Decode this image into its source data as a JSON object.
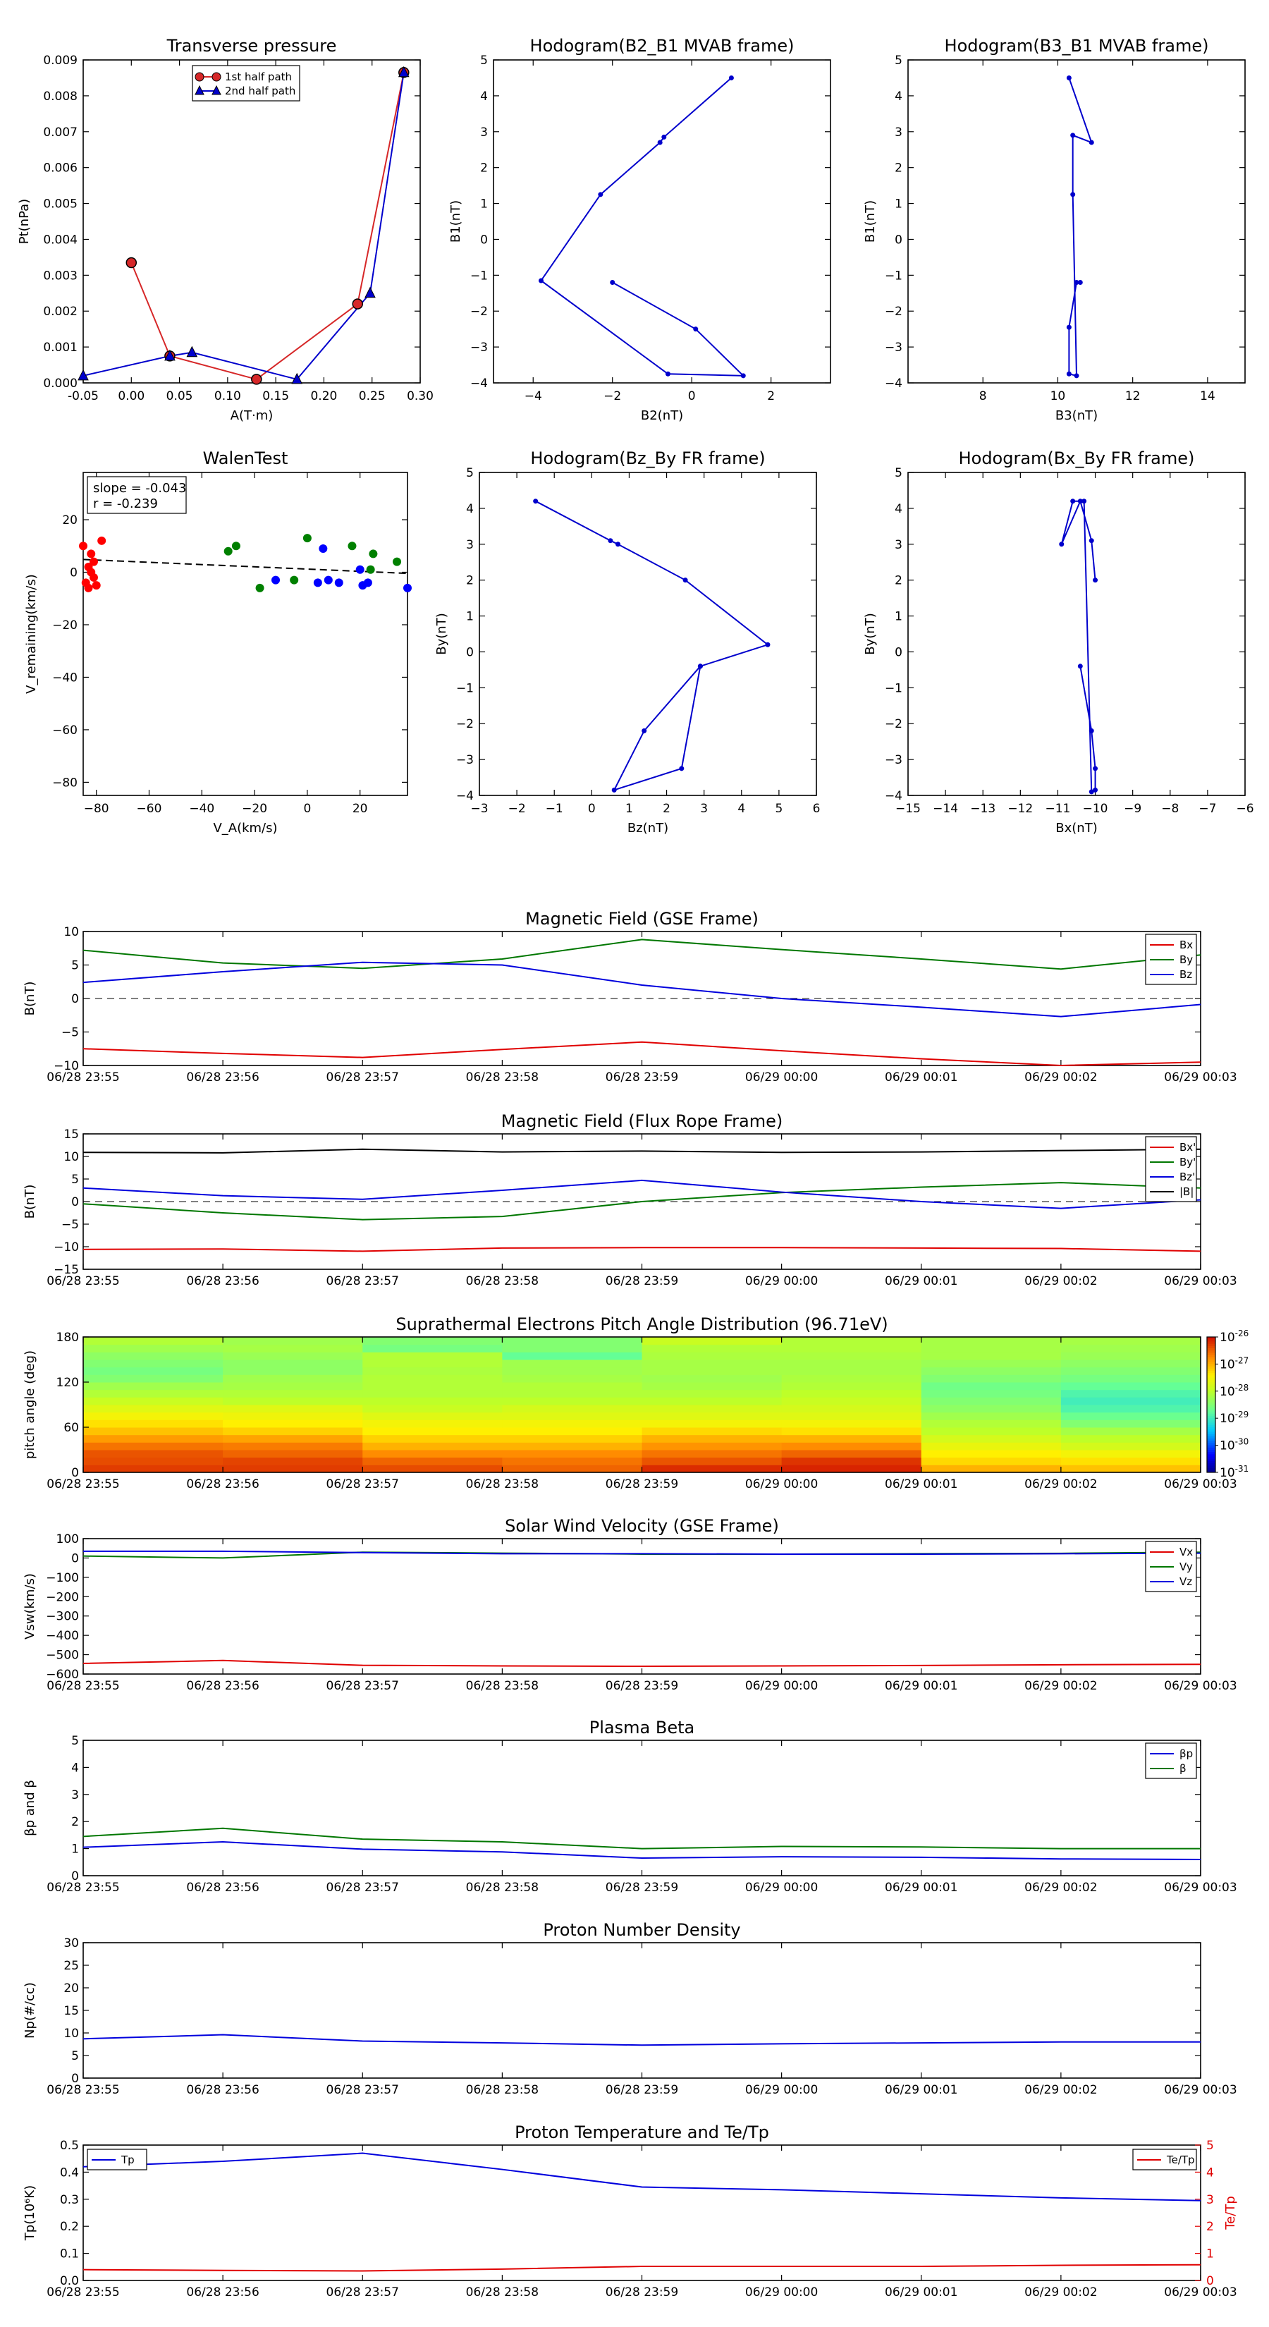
{
  "time_ticks": [
    "06/28 23:55",
    "06/28 23:56",
    "06/28 23:57",
    "06/28 23:58",
    "06/28 23:59",
    "06/29 00:00",
    "06/29 00:01",
    "06/29 00:02",
    "06/29 00:03"
  ],
  "chart_data": [
    {
      "id": "pt",
      "type": "line",
      "title": "Transverse pressure",
      "xlabel": "A(T·m)",
      "ylabel": "Pt(nPa)",
      "xlim": [
        -0.05,
        0.3
      ],
      "ylim": [
        0,
        0.009
      ],
      "xticks": [
        "-0.05",
        "0.00",
        "0.05",
        "0.10",
        "0.15",
        "0.20",
        "0.25",
        "0.30"
      ],
      "yticks": [
        "0.000",
        "0.001",
        "0.002",
        "0.003",
        "0.004",
        "0.005",
        "0.006",
        "0.007",
        "0.008",
        "0.009"
      ],
      "legend": "top-center",
      "series": [
        {
          "name": "1st half path",
          "color": "#d62728",
          "marker": "circle",
          "x": [
            0.0,
            0.04,
            0.13,
            0.235,
            0.283
          ],
          "y": [
            0.00335,
            0.00075,
            0.0001,
            0.0022,
            0.00865
          ]
        },
        {
          "name": "2nd half path",
          "color": "#0000cc",
          "marker": "triangle",
          "x": [
            0.283,
            0.248,
            0.172,
            0.063,
            0.04,
            -0.05
          ],
          "y": [
            0.00865,
            0.0025,
            0.0001,
            0.00085,
            0.00075,
            0.0002
          ]
        }
      ]
    },
    {
      "id": "h1",
      "type": "line",
      "title": "Hodogram(B2_B1 MVAB frame)",
      "xlabel": "B2(nT)",
      "ylabel": "B1(nT)",
      "xlim": [
        -5,
        3.5
      ],
      "ylim": [
        -4,
        5
      ],
      "xticks": [
        "−4",
        "−2",
        "0",
        "2"
      ],
      "yticks": [
        "−4",
        "−3",
        "−2",
        "−1",
        "0",
        "1",
        "2",
        "3",
        "4",
        "5"
      ],
      "series": [
        {
          "color": "#0000cc",
          "x": [
            -2.0,
            0.1,
            1.3,
            -0.6,
            -3.8,
            -2.3,
            -0.8,
            -0.7,
            1.0
          ],
          "y": [
            -1.2,
            -2.5,
            -3.8,
            -3.75,
            -1.15,
            1.25,
            2.7,
            2.85,
            4.5
          ]
        }
      ]
    },
    {
      "id": "h2",
      "type": "line",
      "title": "Hodogram(B3_B1 MVAB frame)",
      "xlabel": "B3(nT)",
      "ylabel": "B1(nT)",
      "xlim": [
        6,
        15
      ],
      "ylim": [
        -4,
        5
      ],
      "xticks": [
        "8",
        "10",
        "12",
        "14"
      ],
      "yticks": [
        "−4",
        "−3",
        "−2",
        "−1",
        "0",
        "1",
        "2",
        "3",
        "4",
        "5"
      ],
      "series": [
        {
          "color": "#0000cc",
          "x": [
            10.6,
            10.5,
            10.3,
            10.3,
            10.5,
            10.4,
            10.4,
            10.9,
            10.3
          ],
          "y": [
            -1.2,
            -1.2,
            -2.45,
            -3.75,
            -3.8,
            1.25,
            2.9,
            2.7,
            4.5
          ]
        }
      ]
    },
    {
      "id": "walen",
      "type": "scatter",
      "title": "WalenTest",
      "xlabel": "V_A(km/s)",
      "ylabel": "V_remaining(km/s)",
      "xlim": [
        -85,
        38
      ],
      "ylim": [
        -85,
        38
      ],
      "xticks": [
        "−80",
        "−60",
        "−40",
        "−20",
        "0",
        "20"
      ],
      "yticks": [
        "−80",
        "−60",
        "−40",
        "−20",
        "0",
        "20"
      ],
      "annotation": [
        "slope = -0.043",
        "r = -0.239"
      ],
      "fit": {
        "slope": -0.043,
        "intercept": 1.2
      },
      "series": [
        {
          "color": "#ff0000",
          "x": [
            -85,
            -82,
            -81,
            -83,
            -82,
            -81,
            -84,
            -83,
            -80,
            -78
          ],
          "y": [
            10,
            7,
            4,
            2,
            0,
            -2,
            -4,
            -6,
            -5,
            12
          ]
        },
        {
          "color": "#008000",
          "x": [
            -30,
            -27,
            -18,
            -5,
            0,
            17,
            24,
            25,
            34
          ],
          "y": [
            8,
            10,
            -6,
            -3,
            13,
            10,
            1,
            7,
            4
          ]
        },
        {
          "color": "#0000ff",
          "x": [
            -12,
            6,
            4,
            8,
            12,
            20,
            23,
            21,
            38
          ],
          "y": [
            -3,
            9,
            -4,
            -3,
            -4,
            1,
            -4,
            -5,
            -6
          ]
        }
      ]
    },
    {
      "id": "h3",
      "type": "line",
      "title": "Hodogram(Bz_By FR frame)",
      "xlabel": "Bz(nT)",
      "ylabel": "By(nT)",
      "xlim": [
        -3,
        6
      ],
      "ylim": [
        -4,
        5
      ],
      "xticks": [
        "−3",
        "−2",
        "−1",
        "0",
        "1",
        "2",
        "3",
        "4",
        "5",
        "6"
      ],
      "yticks": [
        "−4",
        "−3",
        "−2",
        "−1",
        "0",
        "1",
        "2",
        "3",
        "4",
        "5"
      ],
      "series": [
        {
          "color": "#0000cc",
          "x": [
            2.9,
            4.7,
            2.5,
            0.7,
            0.5,
            -1.5
          ],
          "y": [
            -0.4,
            0.2,
            2.0,
            3.0,
            3.1,
            4.2
          ]
        }
      ]
    },
    {
      "id": "h3b",
      "type": "line",
      "title": "",
      "series": [
        {
          "color": "#0000cc",
          "x": [
            2.9,
            1.4,
            0.6,
            2.4,
            2.9
          ],
          "y": [
            -0.4,
            -2.2,
            -3.85,
            -3.25,
            -0.4
          ]
        }
      ]
    },
    {
      "id": "h4",
      "type": "line",
      "title": "Hodogram(Bx_By FR frame)",
      "xlabel": "Bx(nT)",
      "ylabel": "By(nT)",
      "xlim": [
        -15,
        -6
      ],
      "ylim": [
        -4,
        5
      ],
      "xticks": [
        "−15",
        "−14",
        "−13",
        "−12",
        "−11",
        "−10",
        "−9",
        "−8",
        "−7",
        "−6"
      ],
      "yticks": [
        "−4",
        "−3",
        "−2",
        "−1",
        "0",
        "1",
        "2",
        "3",
        "4",
        "5"
      ],
      "series": [
        {
          "color": "#0000cc",
          "x": [
            -10.4,
            -10.1,
            -10.0,
            -10.0,
            -10.1,
            -10.3,
            -10.6,
            -10.9,
            -10.4,
            -10.1,
            -10.0
          ],
          "y": [
            -0.4,
            -2.2,
            -3.25,
            -3.85,
            -3.9,
            4.2,
            4.2,
            3.0,
            4.2,
            3.1,
            2.0
          ]
        }
      ]
    },
    {
      "id": "bgse",
      "type": "line",
      "title": "Magnetic Field (GSE Frame)",
      "ylabel": "B(nT)",
      "ylim": [
        -10,
        10
      ],
      "yticks": [
        "−10",
        "−5",
        "0",
        "5",
        "10"
      ],
      "legend": "top-right",
      "zero_line": true,
      "x": [
        0,
        1,
        2,
        3,
        4,
        5,
        6,
        7,
        8
      ],
      "series": [
        {
          "name": "Bx",
          "color": "#e00000",
          "values": [
            -7.5,
            -8.2,
            -8.8,
            -7.6,
            -6.5,
            -7.8,
            -9.0,
            -10.0,
            -9.5
          ]
        },
        {
          "name": "By",
          "color": "#007700",
          "values": [
            7.2,
            5.3,
            4.5,
            5.9,
            8.8,
            7.3,
            5.9,
            4.4,
            6.5
          ]
        },
        {
          "name": "Bz",
          "color": "#0000dd",
          "values": [
            2.4,
            4.0,
            5.4,
            5.0,
            2.0,
            0.0,
            -1.3,
            -2.7,
            -0.9
          ]
        }
      ]
    },
    {
      "id": "bfr",
      "type": "line",
      "title": "Magnetic Field (Flux Rope Frame)",
      "ylabel": "B(nT)",
      "ylim": [
        -15,
        15
      ],
      "yticks": [
        "−15",
        "−10",
        "−5",
        "0",
        "5",
        "10",
        "15"
      ],
      "legend": "top-right",
      "zero_line": true,
      "x": [
        0,
        1,
        2,
        3,
        4,
        5,
        6,
        7,
        8
      ],
      "series": [
        {
          "name": "Bx'",
          "color": "#e00000",
          "values": [
            -10.6,
            -10.5,
            -11.0,
            -10.3,
            -10.2,
            -10.2,
            -10.3,
            -10.4,
            -11.0
          ]
        },
        {
          "name": "By'",
          "color": "#007700",
          "values": [
            -0.5,
            -2.5,
            -4.0,
            -3.3,
            0.0,
            2.0,
            3.2,
            4.2,
            3.0
          ]
        },
        {
          "name": "Bz'",
          "color": "#0000dd",
          "values": [
            3.0,
            1.3,
            0.5,
            2.5,
            4.7,
            2.1,
            0.0,
            -1.5,
            0.4
          ]
        },
        {
          "name": "|B|",
          "color": "#000000",
          "values": [
            10.9,
            10.8,
            11.6,
            11.0,
            11.2,
            10.9,
            11.0,
            11.3,
            11.6
          ]
        }
      ]
    },
    {
      "id": "pad",
      "type": "heatmap",
      "title": "Suprathermal Electrons Pitch Angle Distribution (96.71eV)",
      "ylabel": "pitch angle (deg)",
      "ylim": [
        0,
        180
      ],
      "yticks": [
        "0",
        "60",
        "120",
        "180"
      ],
      "colorbar_ticks": [
        "10−26",
        "10−27",
        "10−28",
        "10−29",
        "10−30",
        "10−31"
      ],
      "colorbar_labels": [
        {
          "base": "10",
          "exp": "-26"
        },
        {
          "base": "10",
          "exp": "-27"
        },
        {
          "base": "10",
          "exp": "-28"
        },
        {
          "base": "10",
          "exp": "-29"
        },
        {
          "base": "10",
          "exp": "-30"
        },
        {
          "base": "10",
          "exp": "-31"
        }
      ],
      "columns": 8,
      "rows_per_column": 18,
      "values": [
        [
          0.95,
          0.93,
          0.92,
          0.88,
          0.83,
          0.78,
          0.74,
          0.7,
          0.66,
          0.62,
          0.58,
          0.55,
          0.5,
          0.48,
          0.5,
          0.52,
          0.55,
          0.58
        ],
        [
          0.95,
          0.94,
          0.9,
          0.87,
          0.82,
          0.76,
          0.72,
          0.69,
          0.66,
          0.6,
          0.58,
          0.56,
          0.55,
          0.52,
          0.52,
          0.54,
          0.56,
          0.55
        ],
        [
          0.93,
          0.9,
          0.85,
          0.8,
          0.76,
          0.72,
          0.7,
          0.66,
          0.62,
          0.6,
          0.58,
          0.58,
          0.58,
          0.57,
          0.58,
          0.58,
          0.48,
          0.5
        ],
        [
          0.9,
          0.88,
          0.85,
          0.8,
          0.76,
          0.72,
          0.7,
          0.66,
          0.64,
          0.6,
          0.58,
          0.58,
          0.56,
          0.55,
          0.55,
          0.45,
          0.5,
          0.5
        ],
        [
          0.97,
          0.92,
          0.88,
          0.84,
          0.8,
          0.75,
          0.7,
          0.66,
          0.64,
          0.6,
          0.58,
          0.56,
          0.55,
          0.56,
          0.56,
          0.57,
          0.58,
          0.62
        ],
        [
          0.98,
          0.96,
          0.9,
          0.85,
          0.8,
          0.74,
          0.7,
          0.66,
          0.64,
          0.62,
          0.6,
          0.58,
          0.57,
          0.56,
          0.56,
          0.57,
          0.58,
          0.58
        ],
        [
          0.8,
          0.75,
          0.72,
          0.68,
          0.64,
          0.6,
          0.58,
          0.55,
          0.52,
          0.5,
          0.48,
          0.47,
          0.5,
          0.52,
          0.54,
          0.56,
          0.56,
          0.56
        ],
        [
          0.78,
          0.74,
          0.7,
          0.64,
          0.6,
          0.56,
          0.5,
          0.46,
          0.42,
          0.4,
          0.42,
          0.45,
          0.48,
          0.5,
          0.52,
          0.54,
          0.55,
          0.56
        ]
      ]
    },
    {
      "id": "vsw",
      "type": "line",
      "title": "Solar Wind Velocity (GSE Frame)",
      "ylabel": "Vsw(km/s)",
      "ylim": [
        -600,
        100
      ],
      "yticks": [
        "−600",
        "−500",
        "−400",
        "−300",
        "−200",
        "−100",
        "0",
        "100"
      ],
      "legend": "top-right",
      "x": [
        0,
        1,
        2,
        3,
        4,
        5,
        6,
        7,
        8
      ],
      "series": [
        {
          "name": "Vx",
          "color": "#e00000",
          "values": [
            -545,
            -530,
            -555,
            -558,
            -560,
            -558,
            -556,
            -552,
            -550
          ]
        },
        {
          "name": "Vy",
          "color": "#007700",
          "values": [
            10,
            0,
            30,
            25,
            20,
            20,
            22,
            24,
            30
          ]
        },
        {
          "name": "Vz",
          "color": "#0000dd",
          "values": [
            35,
            35,
            28,
            22,
            22,
            20,
            20,
            22,
            25
          ]
        }
      ]
    },
    {
      "id": "beta",
      "type": "line",
      "title": "Plasma Beta",
      "ylabel": "βp and β",
      "ylim": [
        0,
        5
      ],
      "yticks": [
        "0",
        "1",
        "2",
        "3",
        "4",
        "5"
      ],
      "legend": "top-right",
      "x": [
        0,
        1,
        2,
        3,
        4,
        5,
        6,
        7,
        8
      ],
      "series": [
        {
          "name": "βp",
          "color": "#0000dd",
          "values": [
            1.05,
            1.25,
            0.98,
            0.88,
            0.65,
            0.7,
            0.68,
            0.62,
            0.6
          ]
        },
        {
          "name": "β",
          "color": "#007700",
          "values": [
            1.45,
            1.75,
            1.35,
            1.25,
            1.0,
            1.08,
            1.06,
            1.0,
            1.0
          ]
        }
      ]
    },
    {
      "id": "np",
      "type": "line",
      "title": "Proton Number Density",
      "ylabel": "Np(#/cc)",
      "ylim": [
        0,
        30
      ],
      "yticks": [
        "0",
        "5",
        "10",
        "15",
        "20",
        "25",
        "30"
      ],
      "x": [
        0,
        1,
        2,
        3,
        4,
        5,
        6,
        7,
        8
      ],
      "series": [
        {
          "color": "#0000dd",
          "values": [
            8.7,
            9.6,
            8.2,
            7.8,
            7.3,
            7.6,
            7.8,
            8.0,
            8.0
          ]
        }
      ]
    },
    {
      "id": "tp",
      "type": "line",
      "title": "Proton Temperature and Te/Tp",
      "ylabel": "Tp(10⁶K)",
      "ylabel_right": "Te/Tp",
      "ylim": [
        0,
        0.5
      ],
      "yticks": [
        "0.0",
        "0.1",
        "0.2",
        "0.3",
        "0.4",
        "0.5"
      ],
      "ylim_right": [
        0,
        5
      ],
      "yticks_right": [
        "0",
        "1",
        "2",
        "3",
        "4",
        "5"
      ],
      "x": [
        0,
        1,
        2,
        3,
        4,
        5,
        6,
        7,
        8
      ],
      "series": [
        {
          "name": "Tp",
          "color": "#0000dd",
          "axis": "left",
          "values": [
            0.42,
            0.44,
            0.47,
            0.41,
            0.345,
            0.335,
            0.32,
            0.305,
            0.295
          ]
        },
        {
          "name": "Te/Tp",
          "color": "#e00000",
          "axis": "right",
          "values": [
            0.4,
            0.37,
            0.35,
            0.42,
            0.52,
            0.52,
            0.52,
            0.56,
            0.58
          ]
        }
      ]
    }
  ]
}
